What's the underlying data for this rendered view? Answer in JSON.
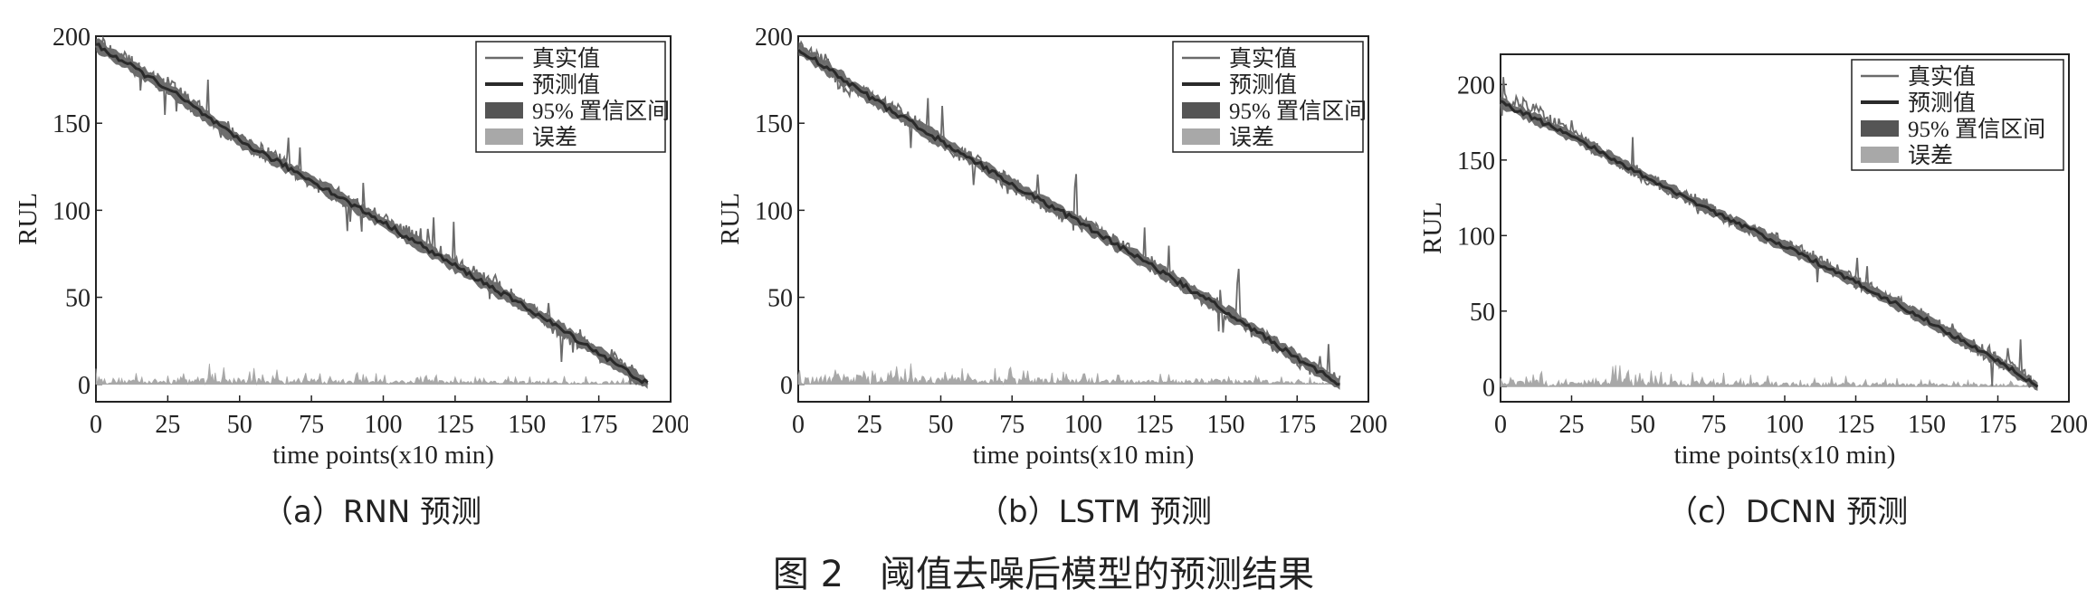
{
  "figure_caption": "图 2　阈值去噪后模型的预测结果",
  "subcaptions": [
    "（a）RNN 预测",
    "（b）LSTM 预测",
    "（c）DCNN 预测"
  ],
  "legend": {
    "true": "真实值",
    "pred": "预测值",
    "ci": "95% 置信区间",
    "err": "误差"
  },
  "colors": {
    "true": "#6a6a6a",
    "pred": "#2a2a2a",
    "ci": "#555555",
    "err": "#a8a8a8",
    "axis": "#222222"
  },
  "chart_data": [
    {
      "type": "line",
      "xlabel": "time points(x10 min)",
      "ylabel": "RUL",
      "xlim": [
        0,
        200
      ],
      "ylim": [
        -10,
        200
      ],
      "xticks": [
        "0",
        "25",
        "50",
        "75",
        "100",
        "125",
        "150",
        "175",
        "200"
      ],
      "yticks": [
        "0",
        "50",
        "100",
        "150",
        "200"
      ],
      "series": [
        {
          "name": "真实值",
          "points": [
            [
              0,
              198
            ],
            [
              10,
              187
            ],
            [
              15,
              180
            ],
            [
              25,
              172
            ],
            [
              35,
              160
            ],
            [
              40,
              150
            ],
            [
              50,
              140
            ],
            [
              60,
              132
            ],
            [
              75,
              117
            ],
            [
              90,
              103
            ],
            [
              100,
              95
            ],
            [
              110,
              85
            ],
            [
              125,
              70
            ],
            [
              140,
              55
            ],
            [
              150,
              45
            ],
            [
              160,
              32
            ],
            [
              175,
              18
            ],
            [
              185,
              8
            ],
            [
              192,
              0
            ]
          ]
        },
        {
          "name": "预测值",
          "points": [
            [
              0,
              195
            ],
            [
              25,
              170
            ],
            [
              50,
              140
            ],
            [
              75,
              117
            ],
            [
              100,
              93
            ],
            [
              125,
              68
            ],
            [
              150,
              44
            ],
            [
              175,
              18
            ],
            [
              192,
              0
            ]
          ]
        },
        {
          "name": "误差",
          "points": [
            [
              0,
              4
            ],
            [
              25,
              3
            ],
            [
              40,
              5
            ],
            [
              50,
              4
            ],
            [
              75,
              3
            ],
            [
              100,
              3
            ],
            [
              125,
              2
            ],
            [
              150,
              2
            ],
            [
              175,
              2
            ],
            [
              190,
              1
            ]
          ]
        }
      ]
    },
    {
      "type": "line",
      "xlabel": "time points(x10 min)",
      "ylabel": "RUL",
      "xlim": [
        0,
        200
      ],
      "ylim": [
        -10,
        200
      ],
      "xticks": [
        "0",
        "25",
        "50",
        "75",
        "100",
        "125",
        "150",
        "175",
        "200"
      ],
      "yticks": [
        "0",
        "50",
        "100",
        "150",
        "200"
      ],
      "series": [
        {
          "name": "真实值",
          "points": [
            [
              0,
              195
            ],
            [
              10,
              185
            ],
            [
              15,
              170
            ],
            [
              25,
              165
            ],
            [
              35,
              158
            ],
            [
              50,
              140
            ],
            [
              60,
              130
            ],
            [
              75,
              115
            ],
            [
              90,
              100
            ],
            [
              100,
              92
            ],
            [
              110,
              83
            ],
            [
              125,
              68
            ],
            [
              140,
              52
            ],
            [
              150,
              42
            ],
            [
              160,
              30
            ],
            [
              175,
              15
            ],
            [
              185,
              5
            ],
            [
              190,
              0
            ]
          ]
        },
        {
          "name": "预测值",
          "points": [
            [
              0,
              193
            ],
            [
              25,
              165
            ],
            [
              50,
              140
            ],
            [
              75,
              115
            ],
            [
              100,
              92
            ],
            [
              125,
              67
            ],
            [
              150,
              42
            ],
            [
              175,
              15
            ],
            [
              190,
              0
            ]
          ]
        },
        {
          "name": "误差",
          "points": [
            [
              0,
              5
            ],
            [
              20,
              6
            ],
            [
              40,
              5
            ],
            [
              60,
              4
            ],
            [
              80,
              4
            ],
            [
              100,
              3
            ],
            [
              125,
              3
            ],
            [
              150,
              3
            ],
            [
              175,
              2
            ],
            [
              188,
              1
            ]
          ]
        }
      ]
    },
    {
      "type": "line",
      "xlabel": "time points(x10 min)",
      "ylabel": "RUL",
      "xlim": [
        0,
        200
      ],
      "ylim": [
        -10,
        220
      ],
      "xticks": [
        "0",
        "25",
        "50",
        "75",
        "100",
        "125",
        "150",
        "175",
        "200"
      ],
      "yticks": [
        "0",
        "50",
        "100",
        "150",
        "200"
      ],
      "series": [
        {
          "name": "真实值",
          "points": [
            [
              0,
              190
            ],
            [
              10,
              185
            ],
            [
              25,
              168
            ],
            [
              40,
              150
            ],
            [
              50,
              140
            ],
            [
              60,
              130
            ],
            [
              75,
              117
            ],
            [
              90,
              102
            ],
            [
              100,
              95
            ],
            [
              110,
              85
            ],
            [
              125,
              70
            ],
            [
              140,
              55
            ],
            [
              150,
              45
            ],
            [
              160,
              33
            ],
            [
              175,
              18
            ],
            [
              185,
              6
            ],
            [
              189,
              0
            ]
          ]
        },
        {
          "name": "预测值",
          "points": [
            [
              0,
              188
            ],
            [
              25,
              166
            ],
            [
              50,
              140
            ],
            [
              75,
              116
            ],
            [
              100,
              93
            ],
            [
              125,
              69
            ],
            [
              150,
              44
            ],
            [
              175,
              17
            ],
            [
              189,
              0
            ]
          ]
        },
        {
          "name": "误差",
          "points": [
            [
              0,
              4
            ],
            [
              25,
              5
            ],
            [
              45,
              6
            ],
            [
              60,
              4
            ],
            [
              80,
              4
            ],
            [
              100,
              3
            ],
            [
              125,
              3
            ],
            [
              150,
              2
            ],
            [
              175,
              2
            ],
            [
              188,
              1
            ]
          ]
        }
      ]
    }
  ]
}
